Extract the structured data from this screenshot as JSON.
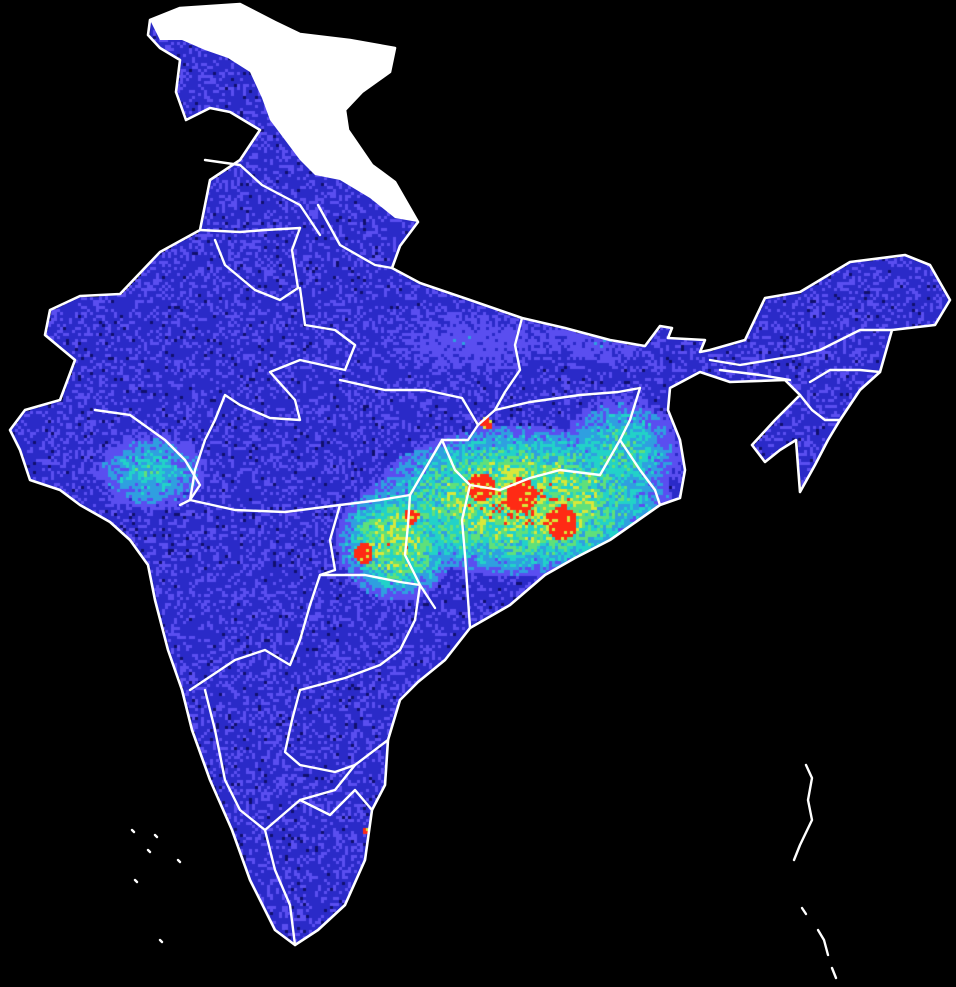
{
  "map": {
    "colors": {
      "background": "#000000",
      "boundary": "#ffffff",
      "no_data": "#ffffff",
      "scale": [
        "#10106e",
        "#2a2ac8",
        "#5a4ef0",
        "#2f9fe0",
        "#22d2c8",
        "#5fe07a",
        "#d8e83a",
        "#ff2a14"
      ]
    },
    "levels": {
      "base_low": 0.12,
      "base_high": 0.3,
      "jharkhand_odisha_belt": 0.8,
      "chhattisgarh": 0.75,
      "west_bengal": 0.6,
      "gujarat_coast": 0.55,
      "hotspots": 1.0
    }
  }
}
